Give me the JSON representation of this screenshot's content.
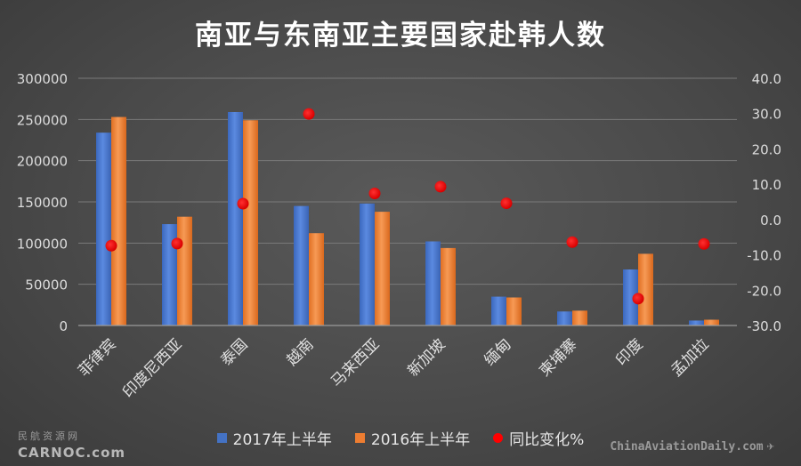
{
  "chart_data": {
    "type": "bar",
    "title": "南亚与东南亚主要国家赴韩人数",
    "categories": [
      "菲律宾",
      "印度尼西亚",
      "泰国",
      "越南",
      "马来西亚",
      "新加坡",
      "缅甸",
      "柬埔寨",
      "印度",
      "孟加拉"
    ],
    "series": [
      {
        "name": "2017年上半年",
        "type": "bar",
        "axis": "left",
        "color": "#4472C4",
        "values": [
          234000,
          123000,
          259000,
          145000,
          148000,
          102000,
          35000,
          17000,
          68000,
          6000
        ]
      },
      {
        "name": "2016年上半年",
        "type": "bar",
        "axis": "left",
        "color": "#ED7D31",
        "values": [
          253000,
          132000,
          249000,
          112000,
          138000,
          94000,
          34000,
          18000,
          87000,
          7000
        ]
      },
      {
        "name": "同比变化%",
        "type": "scatter",
        "axis": "right",
        "color": "#FF0000",
        "values": [
          -7.4,
          -6.8,
          4.5,
          29.9,
          7.4,
          9.3,
          4.6,
          -6.4,
          -22.4,
          -6.9
        ]
      }
    ],
    "y_left": {
      "min": 0,
      "max": 300000,
      "ticks": [
        "0",
        "50000",
        "100000",
        "150000",
        "200000",
        "250000",
        "300000"
      ]
    },
    "y_right": {
      "min": -30,
      "max": 40,
      "ticks": [
        "-30.0",
        "-20.0",
        "-10.0",
        "0.0",
        "10.0",
        "20.0",
        "30.0",
        "40.0"
      ]
    },
    "grid": true,
    "legend_position": "bottom"
  },
  "watermarks": {
    "left_cn": "民航资源网",
    "left_en": "CARNOC.com",
    "right": "ChinaAviationDaily.com"
  }
}
